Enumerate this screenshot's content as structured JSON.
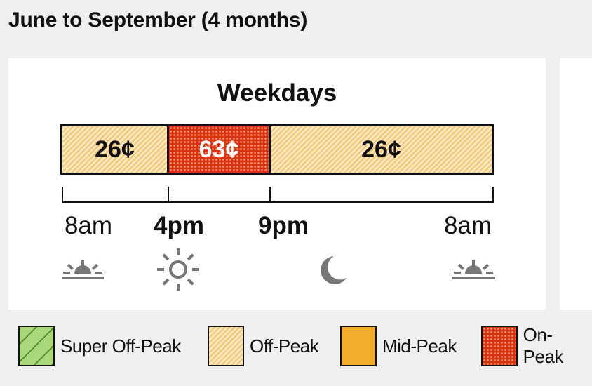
{
  "heading": "June to September (4 months)",
  "panel": {
    "title": "Weekdays",
    "segments": [
      {
        "label": "26¢",
        "tier": "off"
      },
      {
        "label": "63¢",
        "tier": "on"
      },
      {
        "label": "26¢",
        "tier": "off"
      }
    ],
    "times": [
      {
        "label": "8am",
        "bold": false,
        "icon": "sunrise-icon"
      },
      {
        "label": "4pm",
        "bold": true,
        "icon": "sun-icon"
      },
      {
        "label": "9pm",
        "bold": true,
        "icon": "moon-icon"
      },
      {
        "label": "8am",
        "bold": false,
        "icon": "sunrise-icon"
      }
    ]
  },
  "legend": [
    {
      "label": "Super Off-Peak",
      "color": "#a9d77a"
    },
    {
      "label": "Off-Peak",
      "color": "#f9d9a4"
    },
    {
      "label": "Mid-Peak",
      "color": "#f2ad2a"
    },
    {
      "label": "On-Peak",
      "color": "#d9320f"
    }
  ],
  "colors": {
    "off_peak": "#f9d9a4",
    "on_peak": "#d9320f",
    "icon_gray": "#777777"
  }
}
